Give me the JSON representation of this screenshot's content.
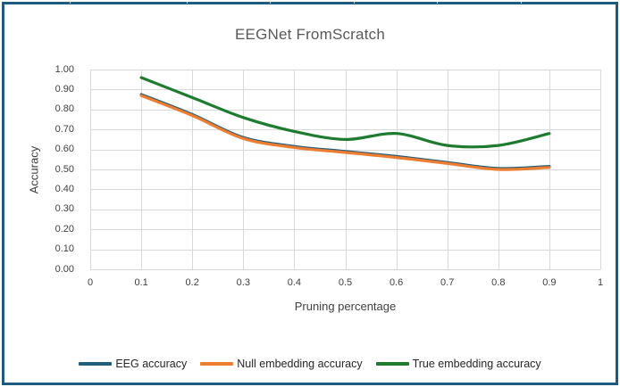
{
  "chart_data": {
    "type": "line",
    "title": "EEGNet FromScratch",
    "xlabel": "Pruning percentage",
    "ylabel": "Accuracy",
    "xlim": [
      0,
      1
    ],
    "ylim": [
      0,
      1
    ],
    "grid": true,
    "legend_position": "bottom",
    "line_style": "smooth",
    "x_ticks": [
      "0",
      "0.1",
      "0.2",
      "0.3",
      "0.4",
      "0.5",
      "0.6",
      "0.7",
      "0.8",
      "0.9",
      "1"
    ],
    "y_ticks": [
      "0.00",
      "0.10",
      "0.20",
      "0.30",
      "0.40",
      "0.50",
      "0.60",
      "0.70",
      "0.80",
      "0.90",
      "1.00"
    ],
    "x": [
      0.1,
      0.2,
      0.3,
      0.4,
      0.5,
      0.6,
      0.7,
      0.8,
      0.9
    ],
    "series": [
      {
        "name": "EEG accuracy",
        "color": "#215e7c",
        "values": [
          0.875,
          0.775,
          0.66,
          0.615,
          0.59,
          0.565,
          0.535,
          0.505,
          0.515
        ]
      },
      {
        "name": "Null embedding accuracy",
        "color": "#ed7d31",
        "values": [
          0.87,
          0.77,
          0.655,
          0.61,
          0.585,
          0.56,
          0.53,
          0.5,
          0.51
        ]
      },
      {
        "name": "True embedding accuracy",
        "color": "#1e7b30",
        "values": [
          0.96,
          0.86,
          0.76,
          0.69,
          0.65,
          0.68,
          0.62,
          0.62,
          0.68
        ]
      }
    ]
  },
  "frame": {
    "border_color": "#1f5b7e",
    "gridline_color": "#d9d9d9",
    "title_color": "#595959",
    "tick_color": "#404040"
  }
}
